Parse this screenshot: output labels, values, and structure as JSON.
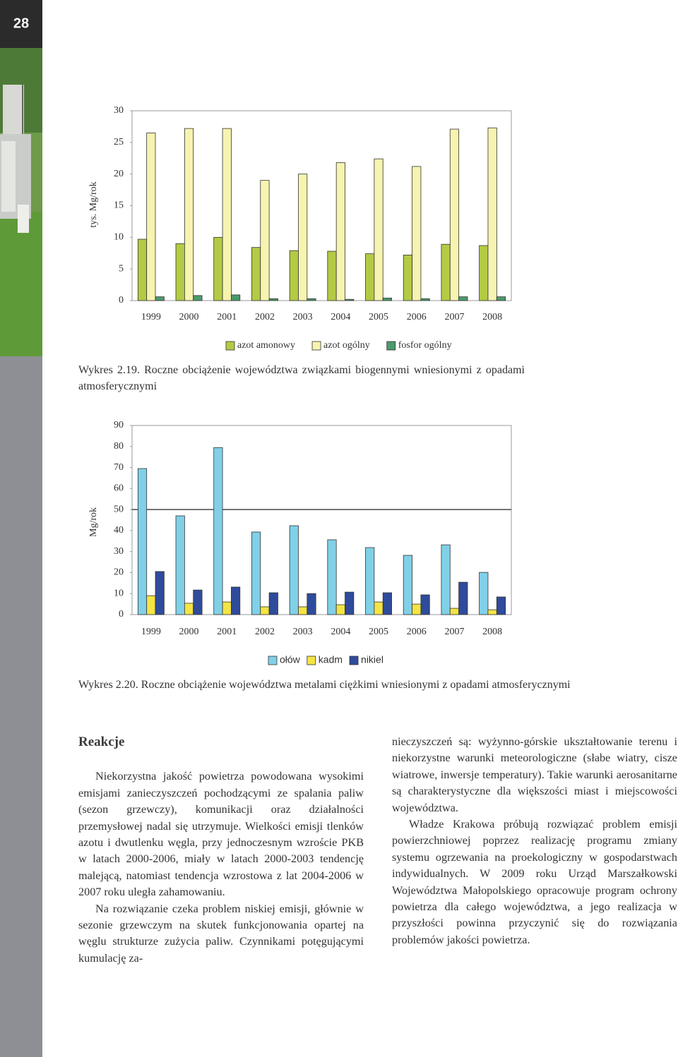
{
  "page_number": "28",
  "chart_data": [
    {
      "type": "bar",
      "y_label": "tys. Mg/rok",
      "categories": [
        "1999",
        "2000",
        "2001",
        "2002",
        "2003",
        "2004",
        "2005",
        "2006",
        "2007",
        "2008"
      ],
      "series": [
        {
          "name": "azot amonowy",
          "color": "#b3cb44",
          "values": [
            9.7,
            9.0,
            10.0,
            8.4,
            7.9,
            7.8,
            7.4,
            7.2,
            8.9,
            8.7
          ]
        },
        {
          "name": "azot ogólny",
          "color": "#f7f3b0",
          "values": [
            26.5,
            27.2,
            27.2,
            19.0,
            20.0,
            21.8,
            22.4,
            21.2,
            27.1,
            27.3
          ]
        },
        {
          "name": "fosfor ogólny",
          "color": "#4b9a6c",
          "values": [
            0.6,
            0.8,
            0.9,
            0.3,
            0.3,
            0.2,
            0.4,
            0.3,
            0.6,
            0.6
          ]
        }
      ],
      "ylim": [
        0,
        30
      ],
      "yticks": [
        0,
        5,
        10,
        15,
        20,
        25,
        30
      ],
      "legend": "bottom"
    },
    {
      "type": "bar",
      "y_label": "Mg/rok",
      "categories": [
        "1999",
        "2000",
        "2001",
        "2002",
        "2003",
        "2004",
        "2005",
        "2006",
        "2007",
        "2008"
      ],
      "series": [
        {
          "name": "ołów",
          "color": "#80d0e8",
          "values": [
            69.5,
            47.0,
            79.5,
            39.3,
            42.3,
            35.6,
            31.9,
            28.2,
            33.2,
            20.1
          ]
        },
        {
          "name": "kadm",
          "color": "#f4e444",
          "values": [
            9.0,
            5.4,
            6.0,
            3.7,
            3.7,
            4.7,
            6.0,
            5.0,
            3.0,
            2.3
          ]
        },
        {
          "name": "nikiel",
          "color": "#2f4b9b",
          "values": [
            20.5,
            11.7,
            13.1,
            10.4,
            10.0,
            10.7,
            10.4,
            9.4,
            15.4,
            8.4
          ]
        }
      ],
      "ylim": [
        0,
        90
      ],
      "yticks": [
        0,
        10,
        20,
        30,
        40,
        50,
        60,
        70,
        80,
        90
      ],
      "reference_line": 50,
      "legend": "bottom"
    }
  ],
  "captions": [
    "Wykres 2.19. Roczne obciążenie województwa związkami biogennymi wniesionymi z opadami atmosferycznymi",
    "Wykres 2.20. Roczne obciążenie województwa metalami ciężkimi wniesionymi z opadami atmosferycznymi"
  ],
  "section": {
    "heading": "Reakcje",
    "left_column": [
      "Niekorzystna jakość powietrza powodowana wysokimi emisjami zanieczyszczeń pochodzącymi ze spalania paliw (sezon grzewczy), komunikacji oraz działalności przemysłowej nadal się utrzymuje. Wielkości emisji tlenków azotu i dwutlenku węgla, przy jednoczesnym wzroście PKB w latach 2000-2006, miały w latach 2000-2003 tendencję malejącą, natomiast tendencja wzrostowa z lat 2004-2006 w 2007 roku uległa zahamowaniu.",
      "Na rozwiązanie czeka problem niskiej emisji, głównie w sezonie grzewczym na skutek funkcjonowania opartej na węglu strukturze zużycia paliw. Czynnikami potęgującymi kumulację za-"
    ],
    "right_column": [
      "nieczyszczeń są: wyżynno-górskie ukształtowanie terenu i niekorzystne warunki meteorologiczne (słabe wiatry, cisze wiatrowe, inwersje temperatury). Takie warunki aerosanitarne są charakterystyczne dla większości miast i miejscowości województwa.",
      "Władze Krakowa próbują rozwiązać problem emisji powierzchniowej poprzez realizację programu zmiany systemu ogrzewania na proekologiczny w gospodarstwach indywidualnych. W 2009 roku Urząd Marszałkowski Województwa Małopolskiego opracowuje program ochrony powietrza dla całego województwa, a jego realizacja w przyszłości powinna przyczynić się do rozwiązania problemów jakości powietrza."
    ]
  }
}
